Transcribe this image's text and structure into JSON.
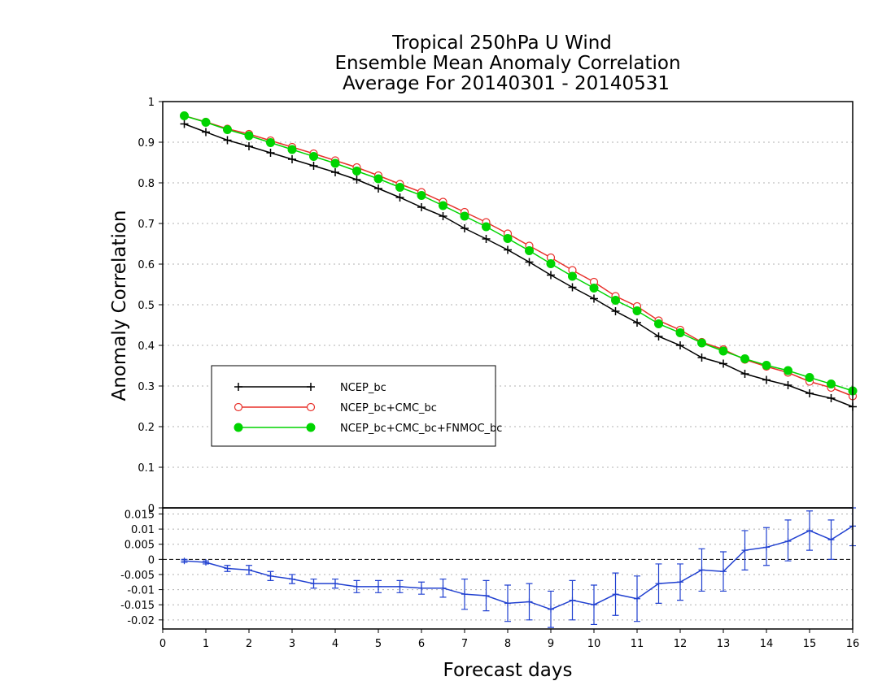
{
  "title_lines": [
    "Tropical 250hPa U Wind",
    "Ensemble Mean Anomaly Correlation",
    "Average For 20140301 - 20140531"
  ],
  "colors": {
    "NCEP_bc": "#000000",
    "NCEP_bc+CMC_bc": "#e8302a",
    "NCEP_bc+CMC_bc+FNMOC_bc": "#00d400",
    "difference": "#2040d0"
  },
  "chart_data": [
    {
      "type": "line",
      "panel": "main",
      "ylabel": "Anomaly Correlation",
      "xlim": [
        0,
        16
      ],
      "ylim": [
        0,
        1
      ],
      "yticks": [
        "0",
        "0.1",
        "0.2",
        "0.3",
        "0.4",
        "0.5",
        "0.6",
        "0.7",
        "0.8",
        "0.9",
        "1"
      ],
      "grid": true,
      "legend_position": "lower-left",
      "x": [
        0.5,
        1,
        1.5,
        2,
        2.5,
        3,
        3.5,
        4,
        4.5,
        5,
        5.5,
        6,
        6.5,
        7,
        7.5,
        8,
        8.5,
        9,
        9.5,
        10,
        10.5,
        11,
        11.5,
        12,
        12.5,
        13,
        13.5,
        14,
        14.5,
        15,
        15.5,
        16
      ],
      "series": [
        {
          "name": "NCEP_bc",
          "marker": "plus",
          "values": [
            0.945,
            0.925,
            0.905,
            0.89,
            0.874,
            0.858,
            0.842,
            0.826,
            0.808,
            0.786,
            0.764,
            0.74,
            0.718,
            0.688,
            0.662,
            0.635,
            0.605,
            0.573,
            0.543,
            0.515,
            0.484,
            0.456,
            0.422,
            0.4,
            0.37,
            0.355,
            0.33,
            0.315,
            0.302,
            0.282,
            0.27,
            0.249
          ]
        },
        {
          "name": "NCEP_bc+CMC_bc",
          "marker": "open-circle",
          "values": [
            0.965,
            0.95,
            0.933,
            0.92,
            0.904,
            0.888,
            0.872,
            0.855,
            0.838,
            0.818,
            0.797,
            0.777,
            0.753,
            0.728,
            0.703,
            0.675,
            0.645,
            0.616,
            0.585,
            0.556,
            0.521,
            0.496,
            0.461,
            0.438,
            0.408,
            0.39,
            0.365,
            0.348,
            0.333,
            0.311,
            0.296,
            0.275
          ]
        },
        {
          "name": "NCEP_bc+CMC_bc+FNMOC_bc",
          "marker": "filled-circle",
          "values": [
            0.965,
            0.949,
            0.931,
            0.916,
            0.899,
            0.882,
            0.865,
            0.848,
            0.829,
            0.81,
            0.789,
            0.769,
            0.744,
            0.718,
            0.692,
            0.663,
            0.633,
            0.601,
            0.57,
            0.541,
            0.511,
            0.485,
            0.453,
            0.431,
            0.406,
            0.386,
            0.367,
            0.351,
            0.338,
            0.321,
            0.305,
            0.288
          ]
        }
      ]
    },
    {
      "type": "line",
      "panel": "difference",
      "xlabel": "Forecast days",
      "xlim": [
        0,
        16
      ],
      "ylim": [
        -0.023,
        0.017
      ],
      "xticks": [
        "0",
        "1",
        "2",
        "3",
        "4",
        "5",
        "6",
        "7",
        "8",
        "9",
        "10",
        "11",
        "12",
        "13",
        "14",
        "15",
        "16"
      ],
      "yticks": [
        "-0.02",
        "-0.015",
        "-0.01",
        "-0.005",
        "0",
        "0.005",
        "0.01",
        "0.015"
      ],
      "grid": true,
      "x": [
        0.5,
        1,
        1.5,
        2,
        2.5,
        3,
        3.5,
        4,
        4.5,
        5,
        5.5,
        6,
        6.5,
        7,
        7.5,
        8,
        8.5,
        9,
        9.5,
        10,
        10.5,
        11,
        11.5,
        12,
        12.5,
        13,
        13.5,
        14,
        14.5,
        15,
        15.5,
        16
      ],
      "series": [
        {
          "marker": "plus",
          "values": [
            -0.0005,
            -0.001,
            -0.003,
            -0.0035,
            -0.0055,
            -0.0065,
            -0.008,
            -0.008,
            -0.009,
            -0.009,
            -0.009,
            -0.0095,
            -0.0095,
            -0.0115,
            -0.012,
            -0.0145,
            -0.014,
            -0.0165,
            -0.0135,
            -0.015,
            -0.0115,
            -0.013,
            -0.008,
            -0.0075,
            -0.0035,
            -0.004,
            0.003,
            0.004,
            0.006,
            0.0095,
            0.0065,
            0.011
          ],
          "error_low": [
            -0.001,
            -0.0015,
            -0.004,
            -0.005,
            -0.007,
            -0.008,
            -0.0095,
            -0.0095,
            -0.011,
            -0.011,
            -0.011,
            -0.0115,
            -0.0125,
            -0.0165,
            -0.017,
            -0.0205,
            -0.02,
            -0.0225,
            -0.02,
            -0.0215,
            -0.0185,
            -0.0205,
            -0.0145,
            -0.0135,
            -0.0105,
            -0.0105,
            -0.0035,
            -0.002,
            -0.0005,
            0.003,
            0.0,
            0.0045
          ],
          "error_high": [
            0.0,
            -0.0005,
            -0.002,
            -0.002,
            -0.004,
            -0.005,
            -0.0065,
            -0.0065,
            -0.007,
            -0.007,
            -0.007,
            -0.0075,
            -0.0065,
            -0.0065,
            -0.007,
            -0.0085,
            -0.008,
            -0.0105,
            -0.007,
            -0.0085,
            -0.0045,
            -0.0055,
            -0.0015,
            -0.0015,
            0.0035,
            0.0025,
            0.0095,
            0.0105,
            0.013,
            0.016,
            0.013,
            0.0175
          ]
        }
      ]
    }
  ]
}
